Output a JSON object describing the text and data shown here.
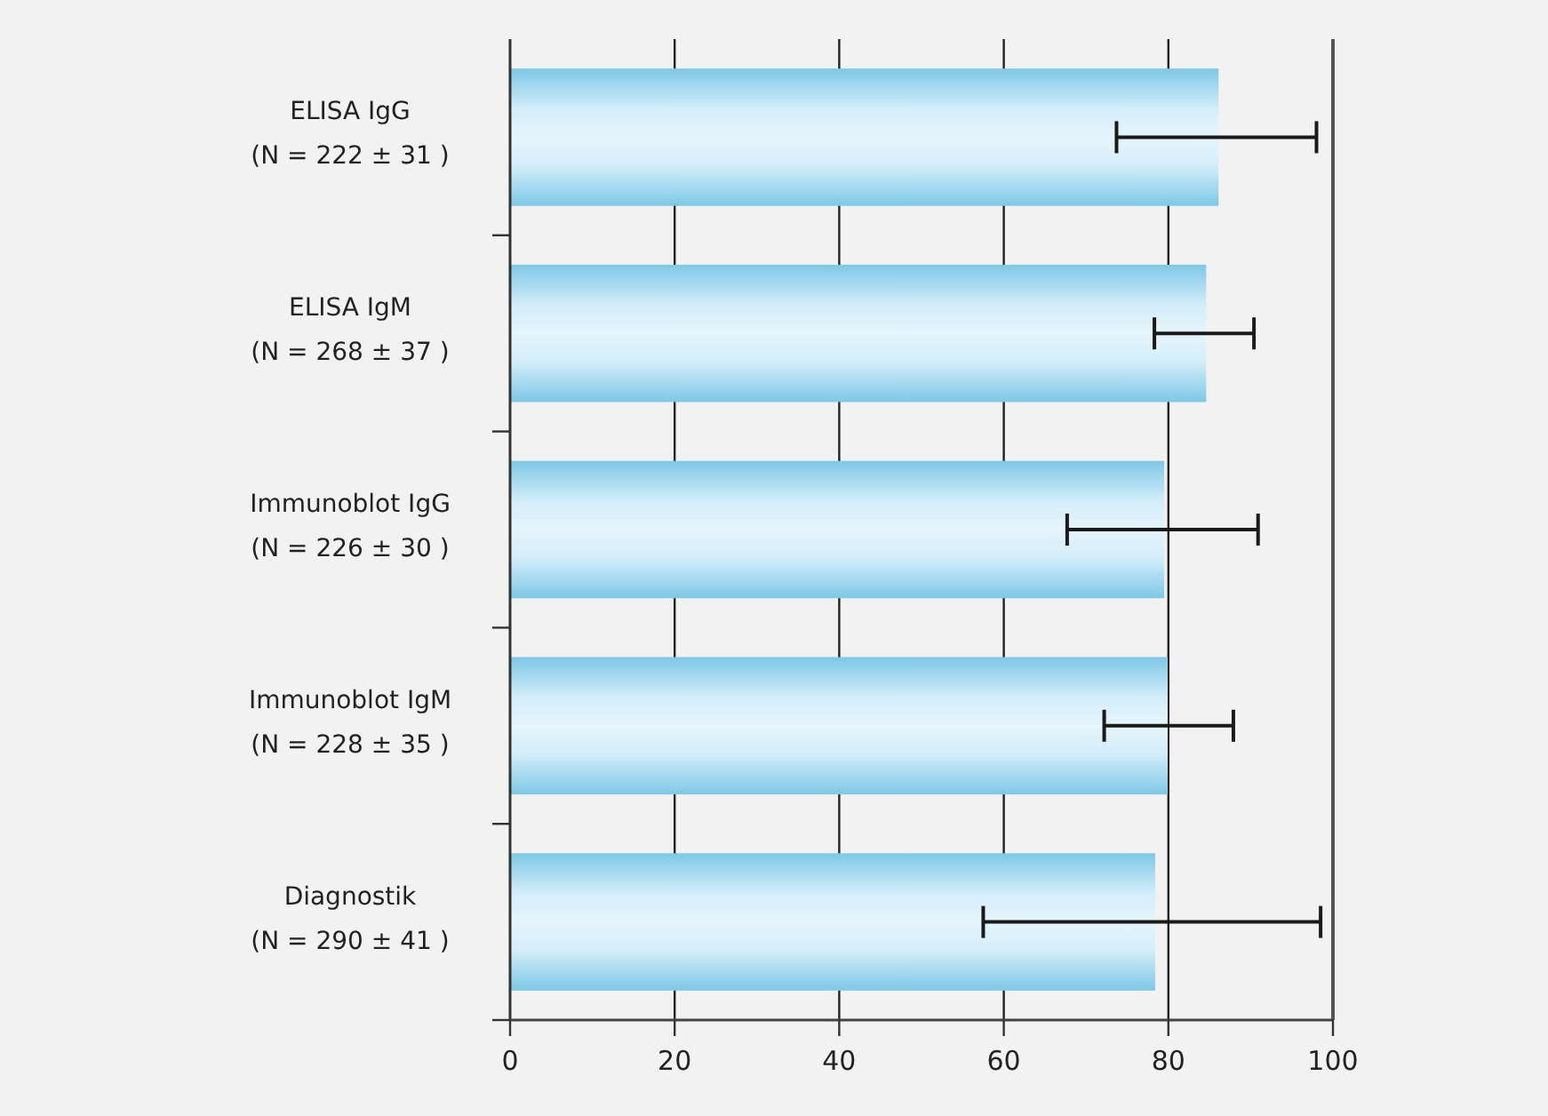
{
  "chart_data": {
    "type": "bar",
    "orientation": "horizontal",
    "categories": [
      "ELISA IgG\n(N = 222 ± 31 )",
      "ELISA IgM\n(N = 268 ± 37 )",
      "Immunoblot IgG\n(N = 226 ± 30 )",
      "Immunoblot IgM\n(N = 228 ± 35 )",
      "Diagnostik\n(N = 290 ± 41 )"
    ],
    "values": [
      86.1,
      84.6,
      79.5,
      79.9,
      78.4
    ],
    "errors": [
      [
        73.7,
        98.0
      ],
      [
        78.3,
        90.4
      ],
      [
        67.7,
        90.9
      ],
      [
        72.2,
        87.9
      ],
      [
        57.5,
        98.5
      ]
    ],
    "color": "#7ec8e6",
    "xlim": [
      0,
      100
    ],
    "xticks": [
      0,
      20,
      40,
      60,
      80,
      100
    ],
    "grid": "x"
  }
}
